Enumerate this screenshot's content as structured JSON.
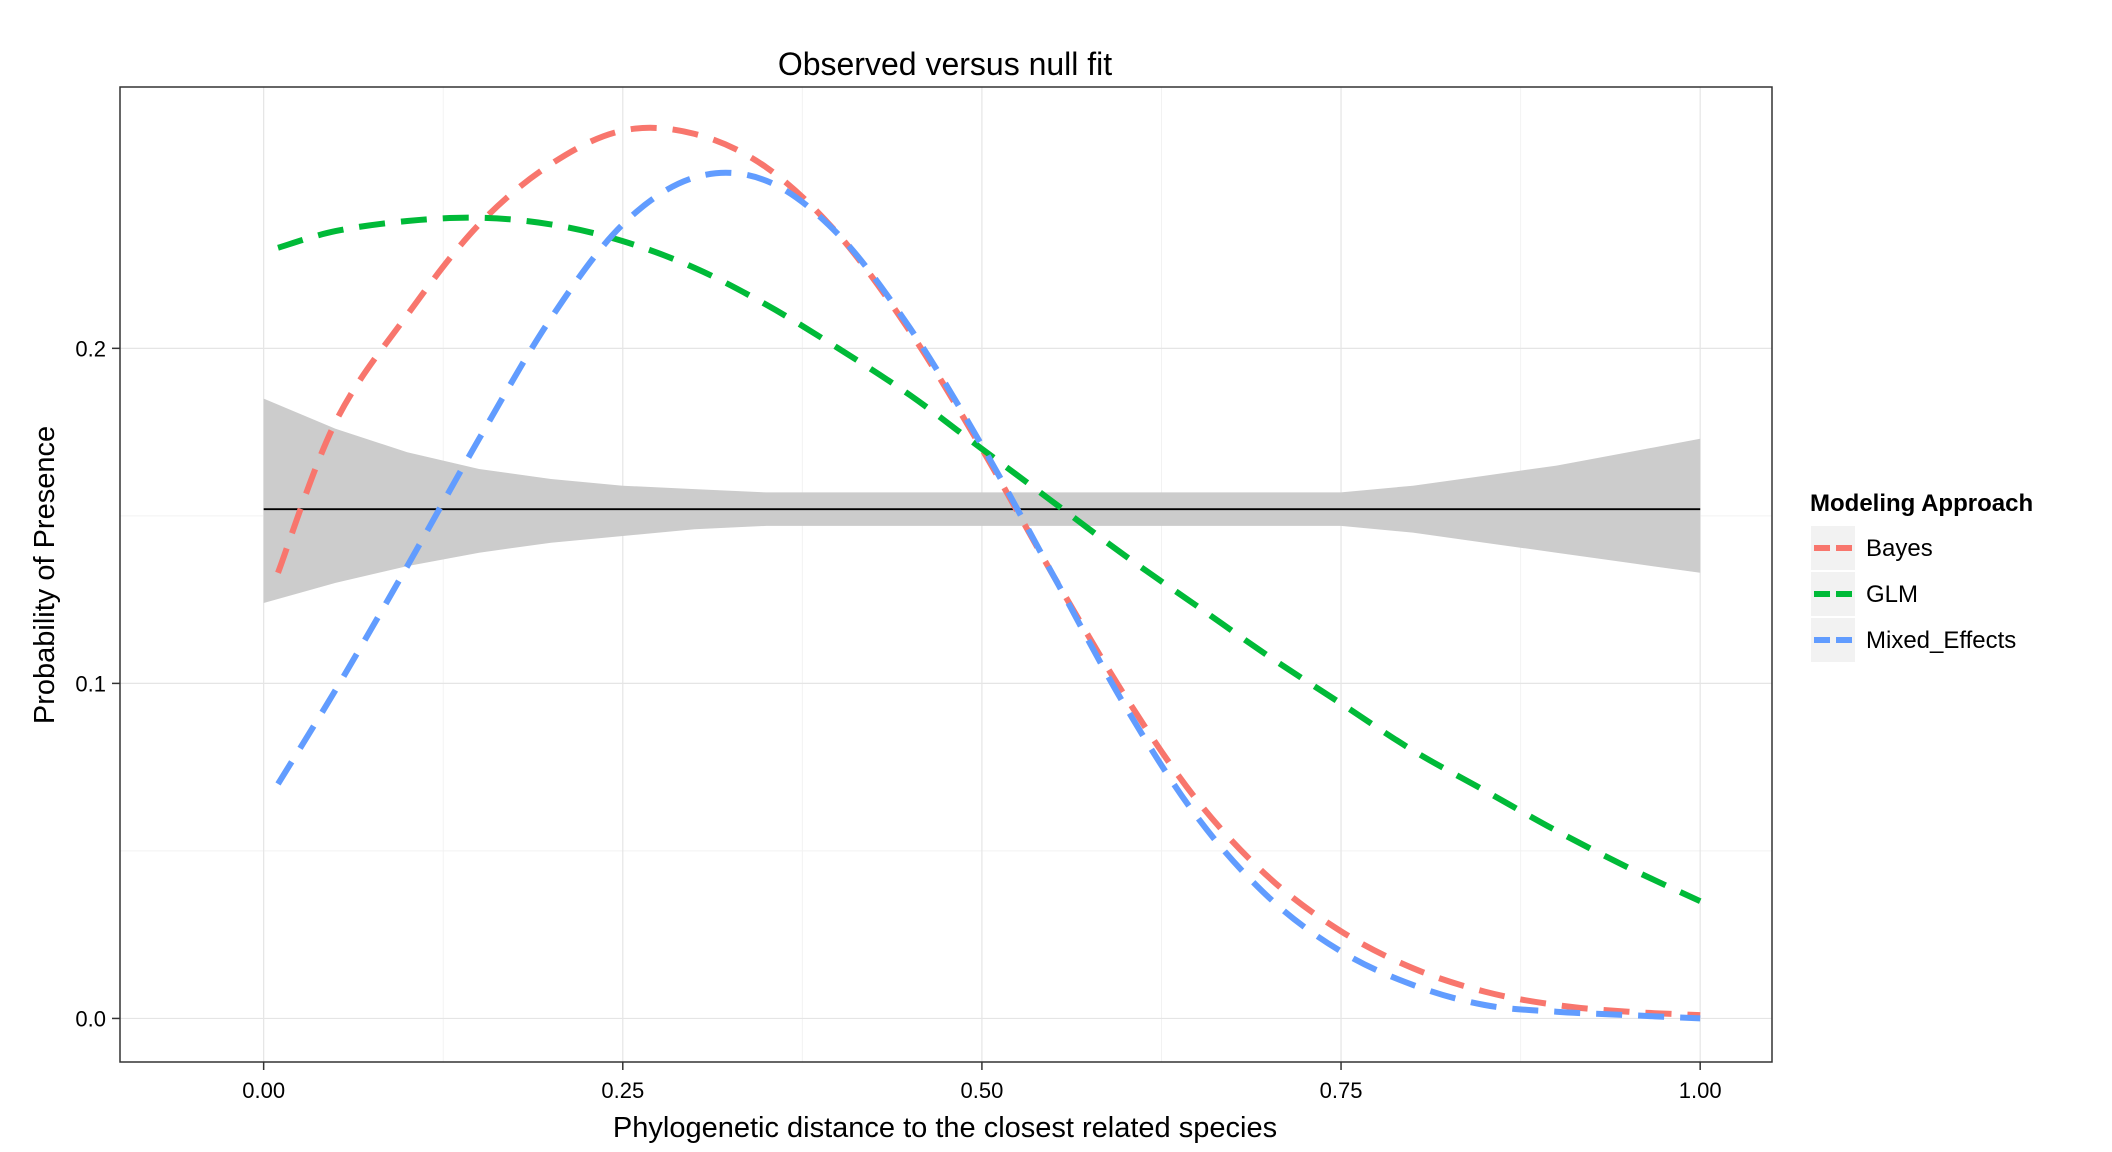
{
  "chart_data": {
    "type": "line",
    "title": "Observed versus null fit",
    "xlabel": "Phylogenetic distance to the closest related species",
    "ylabel": "Probability of Presence",
    "xlim": [
      -0.1,
      1.05
    ],
    "ylim": [
      -0.013,
      0.278
    ],
    "x_ticks": [
      0.0,
      0.25,
      0.5,
      0.75,
      1.0
    ],
    "x_tick_labels": [
      "0.00",
      "0.25",
      "0.50",
      "0.75",
      "1.00"
    ],
    "y_ticks": [
      0.0,
      0.1,
      0.2
    ],
    "y_tick_labels": [
      "0.0",
      "0.1",
      "0.2"
    ],
    "grid": true,
    "legend": {
      "title": "Modeling Approach",
      "placement": "right",
      "entries": [
        "Bayes",
        "GLM",
        "Mixed_Effects"
      ]
    },
    "series": [
      {
        "name": "Bayes",
        "color": "#F8766D",
        "style": "dashed",
        "x": [
          0.01,
          0.05,
          0.1,
          0.15,
          0.2,
          0.25,
          0.3,
          0.35,
          0.4,
          0.45,
          0.5,
          0.55,
          0.6,
          0.65,
          0.7,
          0.75,
          0.8,
          0.85,
          0.9,
          0.95,
          1.0
        ],
        "values": [
          0.133,
          0.178,
          0.21,
          0.237,
          0.255,
          0.265,
          0.264,
          0.254,
          0.234,
          0.205,
          0.17,
          0.132,
          0.096,
          0.065,
          0.042,
          0.026,
          0.015,
          0.008,
          0.004,
          0.002,
          0.001
        ]
      },
      {
        "name": "GLM",
        "color": "#00BA38",
        "style": "dashed",
        "x": [
          0.01,
          0.05,
          0.1,
          0.15,
          0.2,
          0.25,
          0.3,
          0.35,
          0.4,
          0.45,
          0.5,
          0.55,
          0.6,
          0.65,
          0.7,
          0.75,
          0.8,
          0.85,
          0.9,
          0.95,
          1.0
        ],
        "values": [
          0.23,
          0.235,
          0.238,
          0.239,
          0.237,
          0.232,
          0.224,
          0.213,
          0.2,
          0.186,
          0.17,
          0.154,
          0.138,
          0.123,
          0.108,
          0.094,
          0.08,
          0.068,
          0.056,
          0.045,
          0.035
        ]
      },
      {
        "name": "Mixed_Effects",
        "color": "#619CFF",
        "style": "dashed",
        "x": [
          0.01,
          0.05,
          0.1,
          0.15,
          0.2,
          0.25,
          0.3,
          0.35,
          0.4,
          0.45,
          0.5,
          0.55,
          0.6,
          0.65,
          0.7,
          0.75,
          0.8,
          0.85,
          0.9,
          0.95,
          1.0
        ],
        "values": [
          0.07,
          0.098,
          0.135,
          0.173,
          0.209,
          0.237,
          0.251,
          0.25,
          0.234,
          0.206,
          0.171,
          0.132,
          0.093,
          0.06,
          0.036,
          0.02,
          0.01,
          0.004,
          0.002,
          0.001,
          0.0
        ]
      },
      {
        "name": "",
        "color": "#000000",
        "style": "solid",
        "x": [
          0.0,
          1.0
        ],
        "values": [
          0.152,
          0.152
        ]
      }
    ],
    "ribbon": {
      "color": "#CCCCCC",
      "x": [
        0.0,
        0.05,
        0.1,
        0.15,
        0.2,
        0.25,
        0.3,
        0.35,
        0.4,
        0.45,
        0.5,
        0.55,
        0.6,
        0.65,
        0.7,
        0.75,
        0.8,
        0.85,
        0.9,
        0.95,
        1.0
      ],
      "upper": [
        0.185,
        0.176,
        0.169,
        0.164,
        0.161,
        0.159,
        0.158,
        0.157,
        0.157,
        0.157,
        0.157,
        0.157,
        0.157,
        0.157,
        0.157,
        0.157,
        0.159,
        0.162,
        0.165,
        0.169,
        0.173
      ],
      "lower": [
        0.124,
        0.13,
        0.135,
        0.139,
        0.142,
        0.144,
        0.146,
        0.147,
        0.147,
        0.147,
        0.147,
        0.147,
        0.147,
        0.147,
        0.147,
        0.147,
        0.145,
        0.142,
        0.139,
        0.136,
        0.133
      ]
    }
  }
}
